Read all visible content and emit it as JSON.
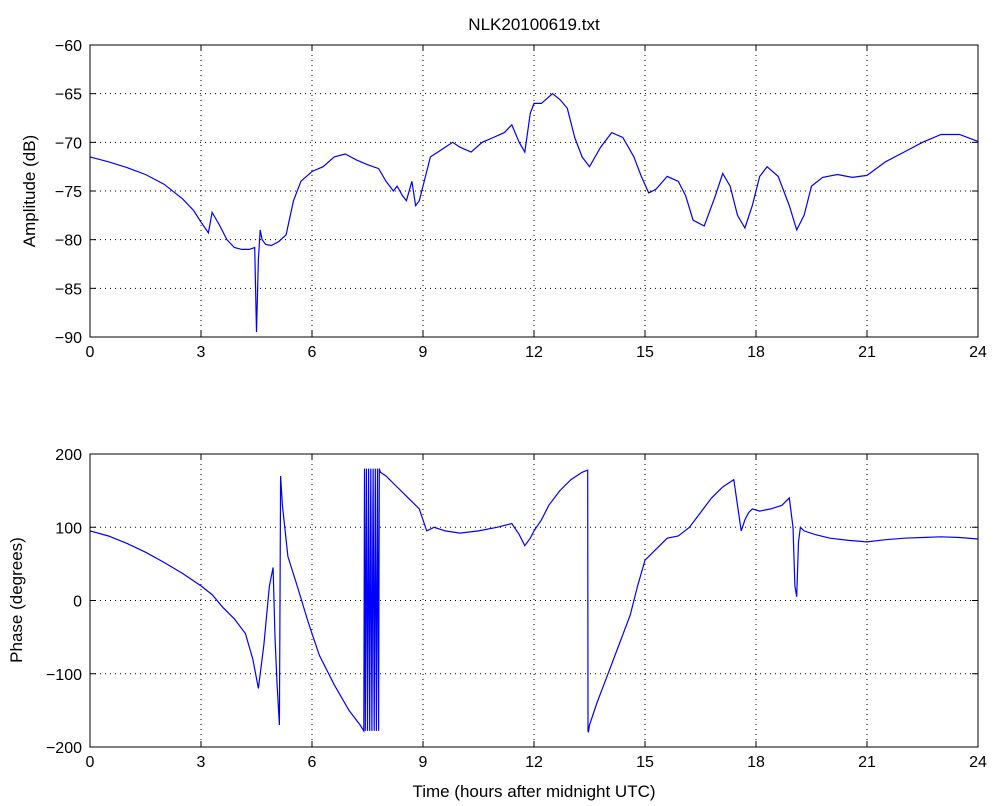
{
  "chart_data": [
    {
      "type": "line",
      "title": "NLK20100619.txt",
      "xlabel": "",
      "ylabel": "Amplitude (dB)",
      "xlim": [
        0,
        24
      ],
      "ylim": [
        -90,
        -60
      ],
      "xticks": [
        0,
        3,
        6,
        9,
        12,
        15,
        18,
        21,
        24
      ],
      "yticks": [
        -60,
        -65,
        -70,
        -75,
        -80,
        -85,
        -90
      ],
      "grid": true,
      "line_color": "#0000ff",
      "series": [
        {
          "x": [
            0,
            0.5,
            1.0,
            1.5,
            2.0,
            2.5,
            2.8,
            3.0,
            3.2,
            3.3,
            3.5,
            3.7,
            3.9,
            4.1,
            4.3,
            4.45,
            4.5,
            4.55,
            4.6,
            4.65,
            4.75,
            4.9,
            5.1,
            5.3,
            5.5,
            5.7,
            6.0,
            6.3,
            6.6,
            6.9,
            7.2,
            7.5,
            7.8,
            8.0,
            8.2,
            8.3,
            8.45,
            8.55,
            8.7,
            8.8,
            8.9,
            9.0,
            9.2,
            9.4,
            9.6,
            9.8,
            10.0,
            10.3,
            10.6,
            10.9,
            11.2,
            11.4,
            11.6,
            11.75,
            11.9,
            12.0,
            12.2,
            12.5,
            12.7,
            12.9,
            13.1,
            13.3,
            13.5,
            13.8,
            14.1,
            14.4,
            14.7,
            14.9,
            15.1,
            15.3,
            15.6,
            15.9,
            16.1,
            16.3,
            16.6,
            16.9,
            17.1,
            17.3,
            17.5,
            17.7,
            17.9,
            18.1,
            18.3,
            18.6,
            18.9,
            19.1,
            19.3,
            19.5,
            19.8,
            20.2,
            20.6,
            21.0,
            21.5,
            22.0,
            22.5,
            23.0,
            23.5,
            24.0
          ],
          "values": [
            -71.5,
            -72.0,
            -72.6,
            -73.3,
            -74.3,
            -75.8,
            -77.0,
            -78.2,
            -79.3,
            -77.2,
            -78.5,
            -80.0,
            -80.8,
            -81.0,
            -81.0,
            -80.8,
            -89.5,
            -82.0,
            -79.0,
            -80.0,
            -80.5,
            -80.6,
            -80.2,
            -79.5,
            -76.0,
            -74.0,
            -73.0,
            -72.5,
            -71.5,
            -71.2,
            -71.8,
            -72.3,
            -72.7,
            -74.0,
            -75.0,
            -74.5,
            -75.5,
            -76.0,
            -74.0,
            -76.5,
            -76.0,
            -74.5,
            -71.5,
            -71.0,
            -70.5,
            -70.0,
            -70.5,
            -71.0,
            -70.0,
            -69.5,
            -69.0,
            -68.2,
            -70.0,
            -71.0,
            -67.0,
            -66.0,
            -66.0,
            -65.0,
            -65.6,
            -66.5,
            -69.5,
            -71.5,
            -72.5,
            -70.5,
            -69.0,
            -69.5,
            -71.5,
            -73.5,
            -75.2,
            -74.8,
            -73.5,
            -74.0,
            -75.5,
            -78.0,
            -78.6,
            -75.5,
            -73.2,
            -74.5,
            -77.5,
            -78.8,
            -76.5,
            -73.5,
            -72.5,
            -73.5,
            -76.5,
            -79.0,
            -77.5,
            -74.5,
            -73.6,
            -73.3,
            -73.6,
            -73.4,
            -72.0,
            -71.0,
            -70.0,
            -69.2,
            -69.2,
            -69.9
          ]
        }
      ]
    },
    {
      "type": "line",
      "title": "",
      "xlabel": "Time (hours after midnight UTC)",
      "ylabel": "Phase (degrees)",
      "xlim": [
        0,
        24
      ],
      "ylim": [
        -200,
        200
      ],
      "xticks": [
        0,
        3,
        6,
        9,
        12,
        15,
        18,
        21,
        24
      ],
      "yticks": [
        200,
        100,
        0,
        -100,
        -200
      ],
      "grid": true,
      "line_color": "#0000ff",
      "series": [
        {
          "x": [
            0,
            0.5,
            1.0,
            1.5,
            2.0,
            2.5,
            3.0,
            3.3,
            3.6,
            3.9,
            4.2,
            4.4,
            4.55,
            4.7,
            4.85,
            4.95,
            5.0,
            5.05,
            5.12,
            5.15,
            5.2,
            5.35,
            5.6,
            5.9,
            6.2,
            6.6,
            7.0,
            7.3,
            7.4,
            7.42,
            7.44,
            7.47,
            7.5,
            7.53,
            7.56,
            7.59,
            7.62,
            7.65,
            7.68,
            7.71,
            7.74,
            7.77,
            7.8,
            7.82,
            7.85,
            8.0,
            8.3,
            8.6,
            8.9,
            9.1,
            9.3,
            9.6,
            10.0,
            10.5,
            11.0,
            11.4,
            11.6,
            11.75,
            11.9,
            12.0,
            12.2,
            12.4,
            12.7,
            13.0,
            13.3,
            13.45,
            13.46,
            13.47,
            13.5,
            13.7,
            14.0,
            14.3,
            14.6,
            14.8,
            15.0,
            15.3,
            15.6,
            15.9,
            16.2,
            16.5,
            16.8,
            17.1,
            17.4,
            17.5,
            17.6,
            17.7,
            17.8,
            17.9,
            18.1,
            18.4,
            18.7,
            18.9,
            19.0,
            19.05,
            19.1,
            19.15,
            19.2,
            19.3,
            19.6,
            20.0,
            20.5,
            21.0,
            21.5,
            22.0,
            22.5,
            23.0,
            23.5,
            24.0
          ],
          "values": [
            95,
            88,
            78,
            66,
            52,
            37,
            20,
            8,
            -10,
            -25,
            -45,
            -80,
            -120,
            -60,
            20,
            45,
            -50,
            -110,
            -170,
            170,
            130,
            60,
            20,
            -30,
            -75,
            -115,
            -150,
            -170,
            -178,
            180,
            -178,
            180,
            -178,
            180,
            -178,
            180,
            -178,
            180,
            -178,
            180,
            -178,
            180,
            -178,
            180,
            175,
            170,
            155,
            140,
            125,
            95,
            100,
            95,
            92,
            95,
            100,
            105,
            90,
            75,
            85,
            95,
            110,
            130,
            150,
            165,
            175,
            178,
            -178,
            -180,
            -170,
            -140,
            -100,
            -60,
            -20,
            20,
            55,
            70,
            85,
            88,
            100,
            120,
            140,
            155,
            165,
            130,
            95,
            110,
            120,
            125,
            122,
            125,
            130,
            140,
            100,
            20,
            5,
            80,
            100,
            95,
            90,
            85,
            82,
            80,
            83,
            85,
            86,
            87,
            86,
            84
          ]
        }
      ]
    }
  ]
}
